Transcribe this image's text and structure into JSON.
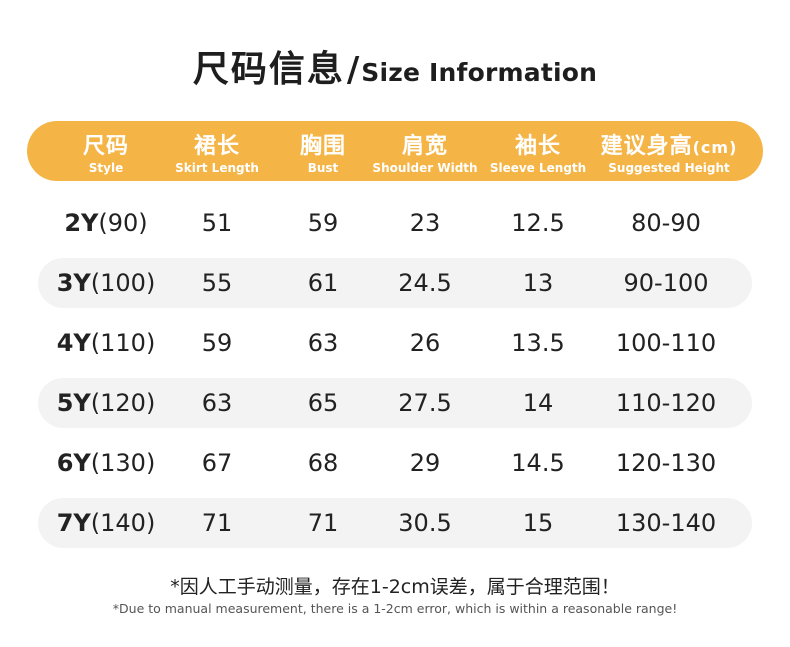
{
  "title": {
    "zh": "尺码信息",
    "slash": "/",
    "en": "Size Information"
  },
  "colors": {
    "header_bg": "#f4b446",
    "row_shade": "#f3f3f3",
    "text": "#222222"
  },
  "columns": [
    {
      "zh": "尺码",
      "en": "Style"
    },
    {
      "zh": "裙长",
      "en": "Skirt Length"
    },
    {
      "zh": "胸围",
      "en": "Bust"
    },
    {
      "zh": "肩宽",
      "en": "Shoulder Width"
    },
    {
      "zh": "袖长",
      "en": "Sleeve Length"
    },
    {
      "zh": "建议身高",
      "unit": "(cm)",
      "en": "Suggested Height"
    }
  ],
  "rows": [
    {
      "size": "2Y",
      "cm": "(90)",
      "skirt": "51",
      "bust": "59",
      "shoulder": "23",
      "sleeve": "12.5",
      "height": "80-90"
    },
    {
      "size": "3Y",
      "cm": "(100)",
      "skirt": "55",
      "bust": "61",
      "shoulder": "24.5",
      "sleeve": "13",
      "height": "90-100"
    },
    {
      "size": "4Y",
      "cm": "(110)",
      "skirt": "59",
      "bust": "63",
      "shoulder": "26",
      "sleeve": "13.5",
      "height": "100-110"
    },
    {
      "size": "5Y",
      "cm": "(120)",
      "skirt": "63",
      "bust": "65",
      "shoulder": "27.5",
      "sleeve": "14",
      "height": "110-120"
    },
    {
      "size": "6Y",
      "cm": "(130)",
      "skirt": "67",
      "bust": "68",
      "shoulder": "29",
      "sleeve": "14.5",
      "height": "120-130"
    },
    {
      "size": "7Y",
      "cm": "(140)",
      "skirt": "71",
      "bust": "71",
      "shoulder": "30.5",
      "sleeve": "15",
      "height": "130-140"
    }
  ],
  "note": {
    "zh": "*因人工手动测量，存在1-2cm误差，属于合理范围！",
    "en": "*Due to manual measurement, there is a 1-2cm error, which is within a reasonable range!"
  }
}
